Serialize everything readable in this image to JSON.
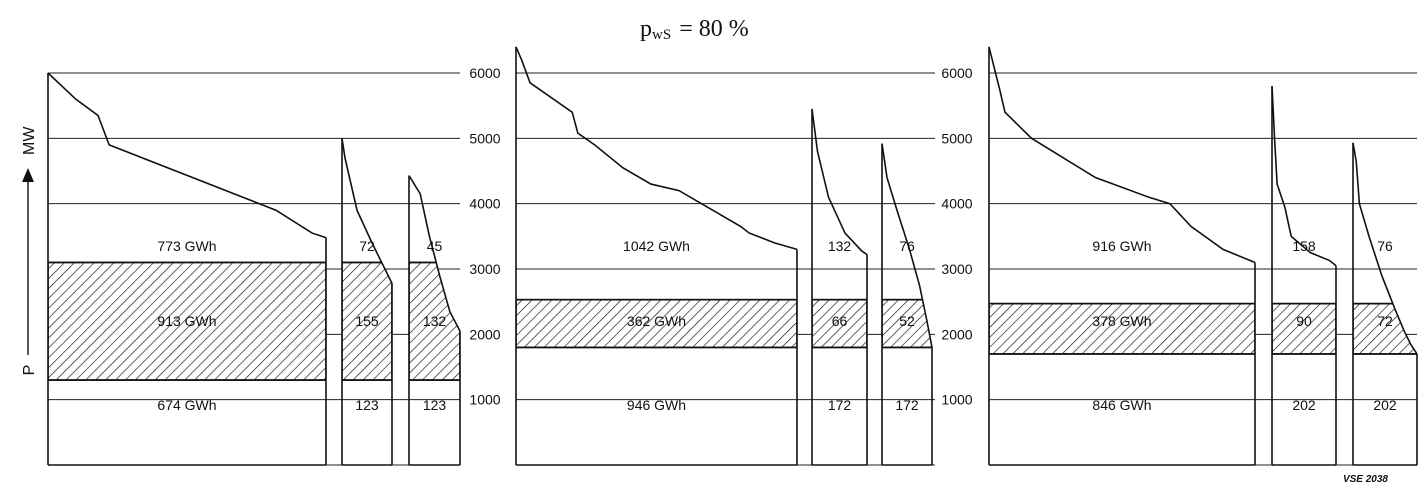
{
  "title": "p",
  "title_sub": "wS",
  "title_eq": "= 80 %",
  "y_axis_label": "P",
  "y_axis_unit": "MW",
  "footnote": "VSE 2038",
  "chart_data": {
    "type": "area",
    "ylim": [
      0,
      6000
    ],
    "yticks": [
      1000,
      2000,
      3000,
      4000,
      5000,
      6000
    ],
    "grid": true,
    "panels": [
      {
        "name": "panel-1",
        "tick_labels": false,
        "band": [
          1300,
          3100
        ],
        "boxes": [
          {
            "name": "main",
            "curve": [
              [
                0,
                6000
              ],
              [
                0.1,
                5600
              ],
              [
                0.18,
                5350
              ],
              [
                0.22,
                4900
              ],
              [
                0.82,
                3900
              ],
              [
                0.95,
                3550
              ],
              [
                1.0,
                3480
              ]
            ],
            "labels": [
              "773 GWh",
              "913 GWh",
              "674 GWh"
            ]
          },
          {
            "name": "small-1",
            "curve": [
              [
                0,
                5000
              ],
              [
                0.06,
                4700
              ],
              [
                0.3,
                3900
              ],
              [
                0.6,
                3400
              ],
              [
                1.0,
                2780
              ]
            ],
            "labels": [
              "72",
              "155",
              "123"
            ]
          },
          {
            "name": "small-2",
            "curve": [
              [
                0,
                4430
              ],
              [
                0.22,
                4150
              ],
              [
                0.4,
                3500
              ],
              [
                0.6,
                2900
              ],
              [
                0.8,
                2350
              ],
              [
                1.0,
                2050
              ]
            ],
            "labels": [
              "45",
              "132",
              "123"
            ]
          }
        ]
      },
      {
        "name": "panel-2",
        "tick_labels": true,
        "band": [
          1800,
          2530
        ],
        "boxes": [
          {
            "name": "main",
            "curve": [
              [
                0,
                6400
              ],
              [
                0.02,
                6200
              ],
              [
                0.05,
                5850
              ],
              [
                0.2,
                5400
              ],
              [
                0.22,
                5080
              ],
              [
                0.28,
                4900
              ],
              [
                0.38,
                4550
              ],
              [
                0.48,
                4300
              ],
              [
                0.58,
                4200
              ],
              [
                0.7,
                3900
              ],
              [
                0.8,
                3650
              ],
              [
                0.83,
                3550
              ],
              [
                0.92,
                3400
              ],
              [
                1.0,
                3300
              ]
            ],
            "labels": [
              "1042 GWh",
              "362 GWh",
              "946 GWh"
            ]
          },
          {
            "name": "small-1",
            "curve": [
              [
                0,
                5450
              ],
              [
                0.1,
                4800
              ],
              [
                0.3,
                4100
              ],
              [
                0.6,
                3550
              ],
              [
                0.9,
                3280
              ],
              [
                1.0,
                3220
              ]
            ],
            "labels": [
              "132",
              "66",
              "172"
            ]
          },
          {
            "name": "small-2",
            "curve": [
              [
                0,
                4920
              ],
              [
                0.1,
                4400
              ],
              [
                0.3,
                3900
              ],
              [
                0.55,
                3300
              ],
              [
                0.75,
                2750
              ],
              [
                0.9,
                2200
              ],
              [
                1.0,
                1800
              ]
            ],
            "labels": [
              "76",
              "52",
              "172"
            ]
          }
        ]
      },
      {
        "name": "panel-3",
        "tick_labels": true,
        "band": [
          1700,
          2470
        ],
        "boxes": [
          {
            "name": "main",
            "curve": [
              [
                0,
                6400
              ],
              [
                0.04,
                5750
              ],
              [
                0.06,
                5400
              ],
              [
                0.16,
                5000
              ],
              [
                0.4,
                4400
              ],
              [
                0.6,
                4100
              ],
              [
                0.68,
                4000
              ],
              [
                0.76,
                3650
              ],
              [
                0.88,
                3300
              ],
              [
                1.0,
                3100
              ]
            ],
            "labels": [
              "916 GWh",
              "378 GWh",
              "846 GWh"
            ]
          },
          {
            "name": "small-1",
            "curve": [
              [
                0,
                5800
              ],
              [
                0.04,
                5000
              ],
              [
                0.08,
                4300
              ],
              [
                0.2,
                3950
              ],
              [
                0.3,
                3500
              ],
              [
                0.6,
                3250
              ],
              [
                0.9,
                3130
              ],
              [
                1.0,
                3050
              ]
            ],
            "labels": [
              "158",
              "90",
              "202"
            ]
          },
          {
            "name": "small-2",
            "curve": [
              [
                0,
                4930
              ],
              [
                0.05,
                4650
              ],
              [
                0.1,
                4000
              ],
              [
                0.25,
                3500
              ],
              [
                0.45,
                2900
              ],
              [
                0.65,
                2400
              ],
              [
                0.8,
                2050
              ],
              [
                0.9,
                1850
              ],
              [
                1.0,
                1700
              ]
            ],
            "labels": [
              "76",
              "72",
              "202"
            ]
          }
        ]
      }
    ]
  }
}
